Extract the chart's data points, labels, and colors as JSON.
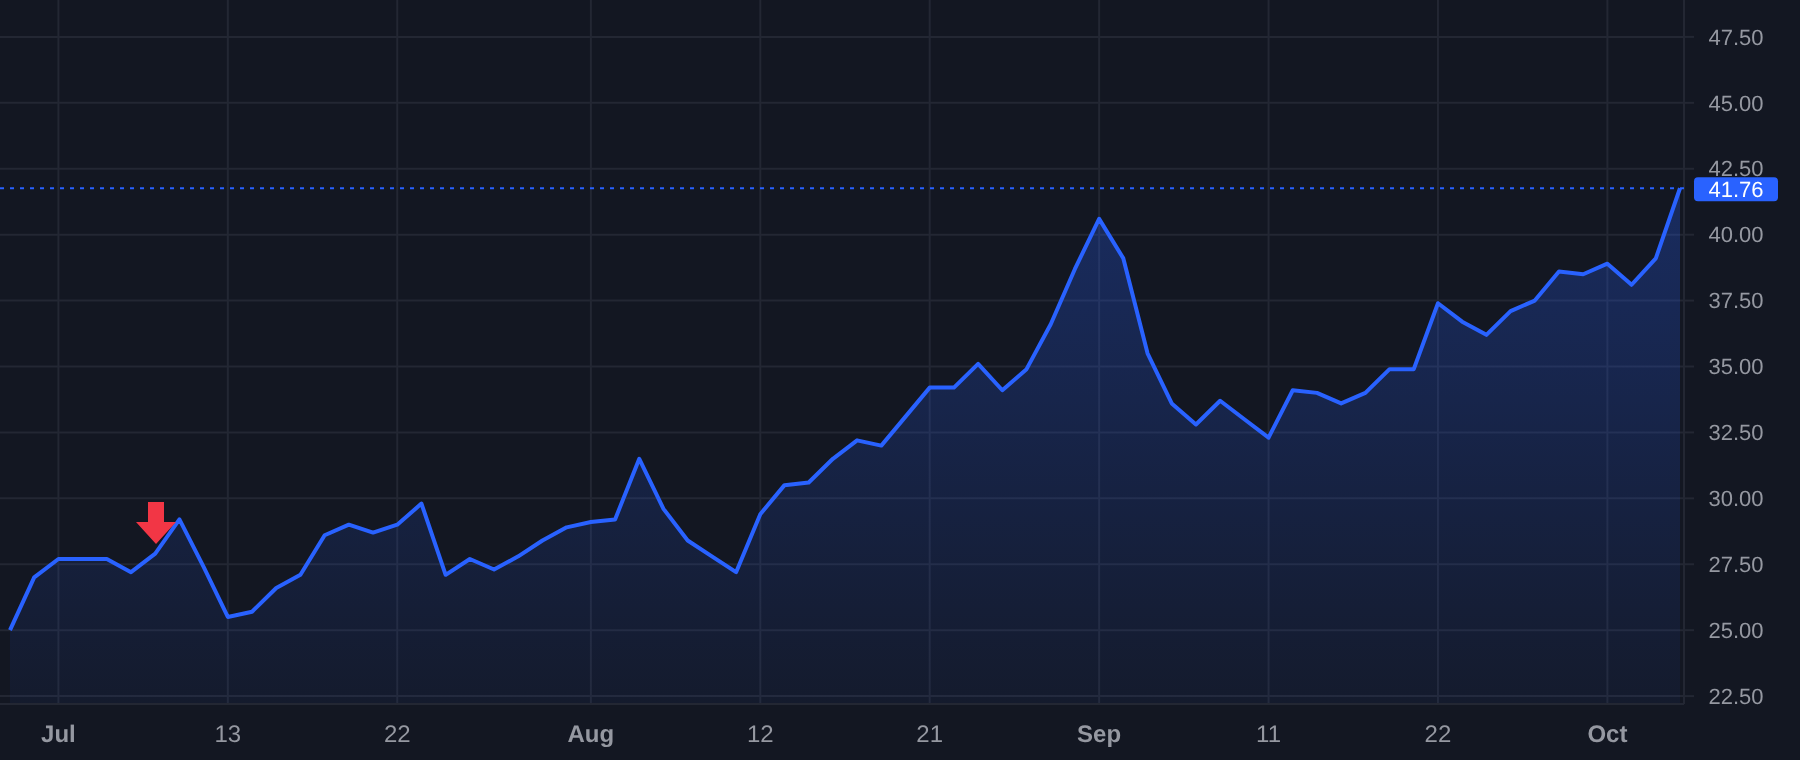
{
  "chart_data": {
    "type": "area",
    "categories": [
      null,
      null,
      "Jul",
      null,
      null,
      null,
      null,
      null,
      null,
      "13",
      null,
      null,
      null,
      null,
      null,
      null,
      "22",
      null,
      null,
      null,
      null,
      null,
      null,
      null,
      "Aug",
      null,
      null,
      null,
      null,
      null,
      null,
      "12",
      null,
      null,
      null,
      null,
      null,
      null,
      "21",
      null,
      null,
      null,
      null,
      null,
      null,
      "Sep",
      null,
      null,
      null,
      null,
      null,
      null,
      "11",
      null,
      null,
      null,
      null,
      null,
      null,
      "22",
      null,
      null,
      null,
      null,
      null,
      null,
      "Oct",
      null,
      null,
      null
    ],
    "series": [
      {
        "color": "#2962ff",
        "values": [
          25.0,
          27.0,
          27.7,
          27.7,
          27.7,
          27.2,
          27.9,
          29.2,
          27.4,
          25.5,
          25.7,
          26.6,
          27.1,
          28.6,
          29.0,
          28.7,
          29.0,
          29.8,
          27.1,
          27.7,
          27.3,
          27.8,
          28.4,
          28.9,
          29.1,
          29.2,
          31.5,
          29.6,
          28.4,
          27.8,
          27.2,
          29.4,
          30.5,
          30.6,
          31.5,
          32.2,
          32.0,
          33.1,
          34.2,
          34.2,
          35.1,
          34.1,
          34.9,
          36.6,
          38.7,
          40.6,
          39.1,
          35.5,
          33.6,
          32.8,
          33.7,
          33.0,
          32.3,
          34.1,
          34.0,
          33.6,
          34.0,
          34.9,
          34.9,
          37.4,
          36.7,
          36.2,
          37.1,
          37.5,
          38.6,
          38.5,
          38.9,
          38.1,
          39.1,
          41.76
        ]
      }
    ],
    "ylim": [
      22.2,
      48.9
    ],
    "yticks": [
      {
        "value": 22.5,
        "label": "22.50"
      },
      {
        "value": 25,
        "label": "25.00"
      },
      {
        "value": 27.5,
        "label": "27.50"
      },
      {
        "value": 30,
        "label": "30.00"
      },
      {
        "value": 32.5,
        "label": "32.50"
      },
      {
        "value": 35,
        "label": "35.00"
      },
      {
        "value": 37.5,
        "label": "37.50"
      },
      {
        "value": 40,
        "label": "40.00"
      },
      {
        "value": 42.5,
        "label": "42.50"
      },
      {
        "value": 45,
        "label": "45.00"
      },
      {
        "value": 47.5,
        "label": "47.50"
      }
    ],
    "grid": true,
    "ref_lines": [
      {
        "axis": "y",
        "value": 41.76,
        "label": "41.76",
        "color": "#2962ff",
        "line_style": "dotted"
      }
    ]
  }
}
